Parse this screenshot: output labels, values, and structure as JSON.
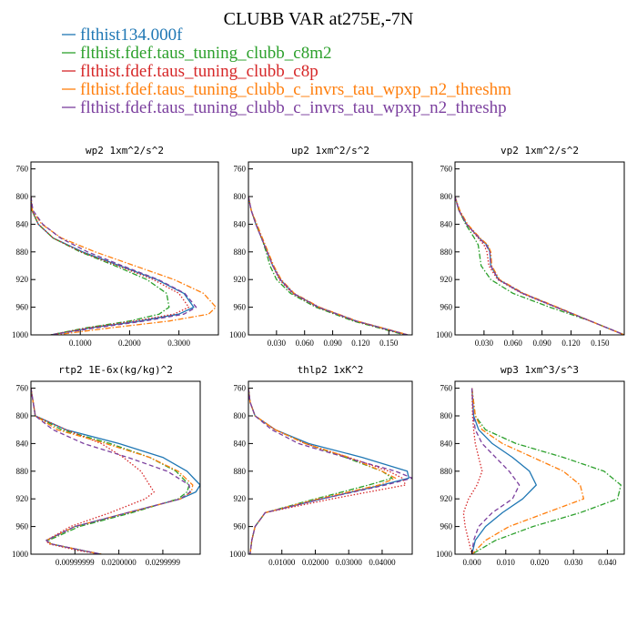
{
  "title": "CLUBB VAR at275E,-7N",
  "legend": [
    {
      "label": "flthist134.000f",
      "color": "#1f77b4",
      "dash": "solid"
    },
    {
      "label": "flthist.fdef.taus_tuning_clubb_c8m2",
      "color": "#2ca02c",
      "dash": "dashdot"
    },
    {
      "label": "flthist.fdef.taus_tuning_clubb_c8p",
      "color": "#d62728",
      "dash": "dot"
    },
    {
      "label": "flthist.fdef.taus_tuning_clubb_c_invrs_tau_wpxp_n2_threshm",
      "color": "#ff7f0e",
      "dash": "dashdot"
    },
    {
      "label": "flthist.fdef.taus_tuning_clubb_c_invrs_tau_wpxp_n2_threshp",
      "color": "#7b3f9e",
      "dash": "dashed"
    }
  ],
  "chart_data": [
    {
      "type": "line",
      "title": "wp2  1xm^2/s^2",
      "ylim": [
        1000,
        750
      ],
      "yticks": [
        760,
        800,
        840,
        880,
        920,
        960,
        1000
      ],
      "xlim": [
        0,
        0.38
      ],
      "xticks": [
        {
          "v": 0.1,
          "label": "0.1000"
        },
        {
          "v": 0.2,
          "label": "0.2000"
        },
        {
          "v": 0.3,
          "label": "0.3000"
        }
      ],
      "y": [
        800,
        820,
        840,
        860,
        880,
        900,
        920,
        940,
        960,
        970,
        980,
        990,
        1000
      ],
      "series": [
        {
          "values": [
            0,
            0.002,
            0.015,
            0.045,
            0.105,
            0.18,
            0.255,
            0.31,
            0.33,
            0.3,
            0.22,
            0.12,
            0.04
          ]
        },
        {
          "values": [
            0,
            0.002,
            0.015,
            0.045,
            0.1,
            0.17,
            0.235,
            0.275,
            0.28,
            0.26,
            0.2,
            0.11,
            0.04
          ]
        },
        {
          "values": [
            0,
            0.002,
            0.015,
            0.045,
            0.102,
            0.176,
            0.248,
            0.3,
            0.32,
            0.29,
            0.21,
            0.115,
            0.04
          ]
        },
        {
          "values": [
            0,
            0.003,
            0.022,
            0.062,
            0.13,
            0.21,
            0.29,
            0.35,
            0.375,
            0.36,
            0.28,
            0.16,
            0.05
          ]
        },
        {
          "values": [
            0,
            0.004,
            0.024,
            0.06,
            0.115,
            0.185,
            0.258,
            0.312,
            0.335,
            0.31,
            0.23,
            0.13,
            0.04
          ]
        }
      ]
    },
    {
      "type": "line",
      "title": "up2  1xm^2/s^2",
      "ylim": [
        1000,
        750
      ],
      "yticks": [
        760,
        800,
        840,
        880,
        920,
        960,
        1000
      ],
      "xlim": [
        0,
        0.175
      ],
      "xticks": [
        {
          "v": 0.03,
          "label": "0.030"
        },
        {
          "v": 0.06,
          "label": "0.060"
        },
        {
          "v": 0.09,
          "label": "0.090"
        },
        {
          "v": 0.12,
          "label": "0.120"
        },
        {
          "v": 0.15,
          "label": "0.150"
        }
      ],
      "y": [
        800,
        820,
        840,
        860,
        880,
        900,
        920,
        940,
        960,
        980,
        1000
      ],
      "series": [
        {
          "values": [
            0,
            0.003,
            0.008,
            0.014,
            0.02,
            0.026,
            0.034,
            0.048,
            0.075,
            0.115,
            0.17
          ]
        },
        {
          "values": [
            0,
            0.003,
            0.008,
            0.014,
            0.019,
            0.023,
            0.03,
            0.045,
            0.072,
            0.112,
            0.167
          ]
        },
        {
          "values": [
            0,
            0.003,
            0.008,
            0.014,
            0.02,
            0.026,
            0.033,
            0.047,
            0.074,
            0.114,
            0.169
          ]
        },
        {
          "values": [
            0,
            0.003,
            0.009,
            0.015,
            0.021,
            0.027,
            0.035,
            0.049,
            0.076,
            0.116,
            0.171
          ]
        },
        {
          "values": [
            0,
            0.003,
            0.008,
            0.014,
            0.02,
            0.026,
            0.034,
            0.048,
            0.075,
            0.115,
            0.17
          ]
        }
      ]
    },
    {
      "type": "line",
      "title": "vp2  1xm^2/s^2",
      "ylim": [
        1000,
        750
      ],
      "yticks": [
        760,
        800,
        840,
        880,
        920,
        960,
        1000
      ],
      "xlim": [
        0,
        0.175
      ],
      "xticks": [
        {
          "v": 0.03,
          "label": "0.030"
        },
        {
          "v": 0.06,
          "label": "0.060"
        },
        {
          "v": 0.09,
          "label": "0.090"
        },
        {
          "v": 0.12,
          "label": "0.120"
        },
        {
          "v": 0.15,
          "label": "0.150"
        }
      ],
      "y": [
        800,
        820,
        840,
        860,
        870,
        880,
        900,
        920,
        940,
        960,
        980,
        1000
      ],
      "series": [
        {
          "values": [
            0,
            0.004,
            0.012,
            0.025,
            0.033,
            0.036,
            0.037,
            0.045,
            0.07,
            0.105,
            0.14,
            0.175
          ]
        },
        {
          "values": [
            0,
            0.004,
            0.011,
            0.02,
            0.024,
            0.025,
            0.027,
            0.037,
            0.06,
            0.098,
            0.14,
            0.175
          ]
        },
        {
          "values": [
            0,
            0.004,
            0.012,
            0.024,
            0.03,
            0.033,
            0.035,
            0.044,
            0.069,
            0.104,
            0.14,
            0.175
          ]
        },
        {
          "values": [
            0,
            0.005,
            0.013,
            0.026,
            0.034,
            0.037,
            0.038,
            0.046,
            0.071,
            0.106,
            0.14,
            0.175
          ]
        },
        {
          "values": [
            0,
            0.004,
            0.012,
            0.025,
            0.032,
            0.036,
            0.037,
            0.045,
            0.07,
            0.105,
            0.14,
            0.175
          ]
        }
      ]
    },
    {
      "type": "line",
      "title": "rtp2  1E-6x(kg/kg)^2",
      "ylim": [
        1000,
        750
      ],
      "yticks": [
        760,
        800,
        840,
        880,
        920,
        960,
        1000
      ],
      "xlim": [
        0,
        0.0385
      ],
      "xticks": [
        {
          "v": 0.01,
          "label": "0.00999999"
        },
        {
          "v": 0.02,
          "label": "0.0200000"
        },
        {
          "v": 0.03,
          "label": "0.0299999"
        }
      ],
      "y": [
        760,
        780,
        800,
        820,
        840,
        860,
        880,
        900,
        910,
        920,
        940,
        960,
        980,
        985,
        995,
        1000
      ],
      "series": [
        {
          "values": [
            0,
            0.0005,
            0.001,
            0.008,
            0.02,
            0.03,
            0.0355,
            0.0385,
            0.0375,
            0.034,
            0.022,
            0.01,
            0.0035,
            0.0045,
            0.012,
            0.016
          ]
        },
        {
          "values": [
            0,
            0.0005,
            0.001,
            0.007,
            0.018,
            0.027,
            0.033,
            0.036,
            0.0355,
            0.0335,
            0.023,
            0.011,
            0.004,
            0.0045,
            0.012,
            0.016
          ]
        },
        {
          "values": [
            0,
            0.0005,
            0.001,
            0.008,
            0.016,
            0.021,
            0.025,
            0.027,
            0.028,
            0.026,
            0.018,
            0.009,
            0.0035,
            0.004,
            0.011,
            0.016
          ]
        },
        {
          "values": [
            0,
            0.0005,
            0.001,
            0.006,
            0.017,
            0.027,
            0.0335,
            0.0368,
            0.0365,
            0.034,
            0.022,
            0.01,
            0.0035,
            0.0045,
            0.012,
            0.016
          ]
        },
        {
          "values": [
            0,
            0.0005,
            0.001,
            0.005,
            0.012,
            0.022,
            0.031,
            0.036,
            0.0362,
            0.034,
            0.022,
            0.01,
            0.0035,
            0.0045,
            0.012,
            0.016
          ]
        }
      ]
    },
    {
      "type": "line",
      "title": "thlp2  1xK^2",
      "ylim": [
        1000,
        750
      ],
      "yticks": [
        760,
        800,
        840,
        880,
        920,
        960,
        1000
      ],
      "xlim": [
        0,
        0.049
      ],
      "xticks": [
        {
          "v": 0.01,
          "label": "0.01000"
        },
        {
          "v": 0.02,
          "label": "0.02000"
        },
        {
          "v": 0.03,
          "label": "0.03000"
        },
        {
          "v": 0.04,
          "label": "0.04000"
        }
      ],
      "y": [
        760,
        780,
        800,
        820,
        840,
        860,
        880,
        890,
        900,
        920,
        940,
        960,
        980,
        1000
      ],
      "series": [
        {
          "values": [
            0,
            0.0005,
            0.002,
            0.008,
            0.018,
            0.034,
            0.0475,
            0.048,
            0.04,
            0.022,
            0.005,
            0.002,
            0.001,
            0.0005
          ]
        },
        {
          "values": [
            0,
            0.0005,
            0.002,
            0.008,
            0.017,
            0.029,
            0.04,
            0.043,
            0.036,
            0.02,
            0.005,
            0.002,
            0.001,
            0.0005
          ]
        },
        {
          "values": [
            0,
            0.0005,
            0.002,
            0.008,
            0.017,
            0.03,
            0.042,
            0.046,
            0.047,
            0.025,
            0.005,
            0.002,
            0.001,
            0.0005
          ]
        },
        {
          "values": [
            0,
            0.0005,
            0.002,
            0.008,
            0.017,
            0.03,
            0.04,
            0.044,
            0.039,
            0.021,
            0.005,
            0.002,
            0.001,
            0.0005
          ]
        },
        {
          "values": [
            0,
            0.0005,
            0.002,
            0.007,
            0.015,
            0.029,
            0.044,
            0.049,
            0.041,
            0.022,
            0.005,
            0.002,
            0.001,
            0.0005
          ]
        }
      ]
    },
    {
      "type": "line",
      "title": "wp3  1xm^3/s^3",
      "ylim": [
        1000,
        750
      ],
      "yticks": [
        760,
        800,
        840,
        880,
        920,
        960,
        1000
      ],
      "xlim": [
        -0.005,
        0.045
      ],
      "xticks": [
        {
          "v": 0,
          "label": "0.000"
        },
        {
          "v": 0.01,
          "label": "0.010"
        },
        {
          "v": 0.02,
          "label": "0.020"
        },
        {
          "v": 0.03,
          "label": "0.030"
        },
        {
          "v": 0.04,
          "label": "0.040"
        }
      ],
      "y": [
        760,
        800,
        820,
        840,
        860,
        880,
        900,
        920,
        940,
        960,
        980,
        1000
      ],
      "series": [
        {
          "values": [
            0,
            0.0005,
            0.002,
            0.006,
            0.012,
            0.017,
            0.019,
            0.015,
            0.009,
            0.004,
            0.001,
            0
          ]
        },
        {
          "values": [
            0,
            0.001,
            0.004,
            0.013,
            0.027,
            0.039,
            0.044,
            0.043,
            0.032,
            0.018,
            0.007,
            0
          ]
        },
        {
          "values": [
            0,
            0.0002,
            0.0005,
            0.001,
            0.002,
            0.003,
            0.0015,
            -0.001,
            -0.0025,
            -0.002,
            -0.001,
            0
          ]
        },
        {
          "values": [
            0,
            0.001,
            0.003,
            0.009,
            0.018,
            0.027,
            0.032,
            0.033,
            0.022,
            0.011,
            0.004,
            0
          ]
        },
        {
          "values": [
            0,
            0.0004,
            0.001,
            0.003,
            0.007,
            0.011,
            0.014,
            0.012,
            0.006,
            0.002,
            0.0005,
            0
          ]
        }
      ]
    }
  ]
}
